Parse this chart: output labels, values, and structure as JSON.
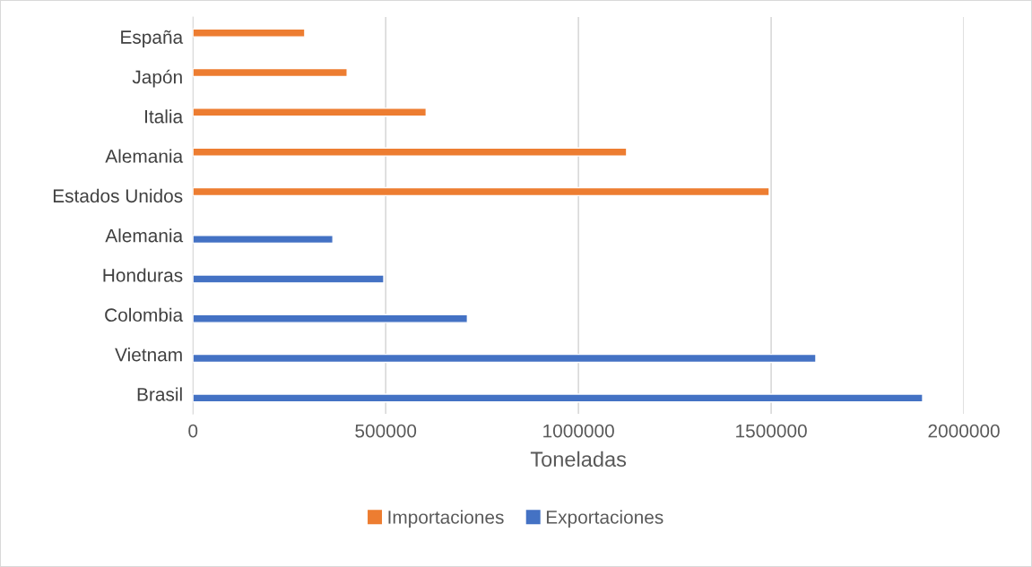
{
  "chart_data": {
    "type": "bar",
    "orientation": "horizontal",
    "categories": [
      "España",
      "Japón",
      "Italia",
      "Alemania",
      "Estados Unidos",
      "Alemania",
      "Honduras",
      "Colombia",
      "Vietnam",
      "Brasil"
    ],
    "series": [
      {
        "name": "Importaciones",
        "color": "#ed7d31",
        "values": [
          290000,
          400000,
          605000,
          1125000,
          1495000,
          null,
          null,
          null,
          null,
          null
        ]
      },
      {
        "name": "Exportaciones",
        "color": "#4472c4",
        "values": [
          null,
          null,
          null,
          null,
          null,
          363000,
          495000,
          712000,
          1616000,
          1893000
        ]
      }
    ],
    "xlabel": "Toneladas",
    "xlim": [
      0,
      2000000
    ],
    "xticks": [
      0,
      500000,
      1000000,
      1500000,
      2000000
    ],
    "grid": "x",
    "legend": "bottom"
  }
}
